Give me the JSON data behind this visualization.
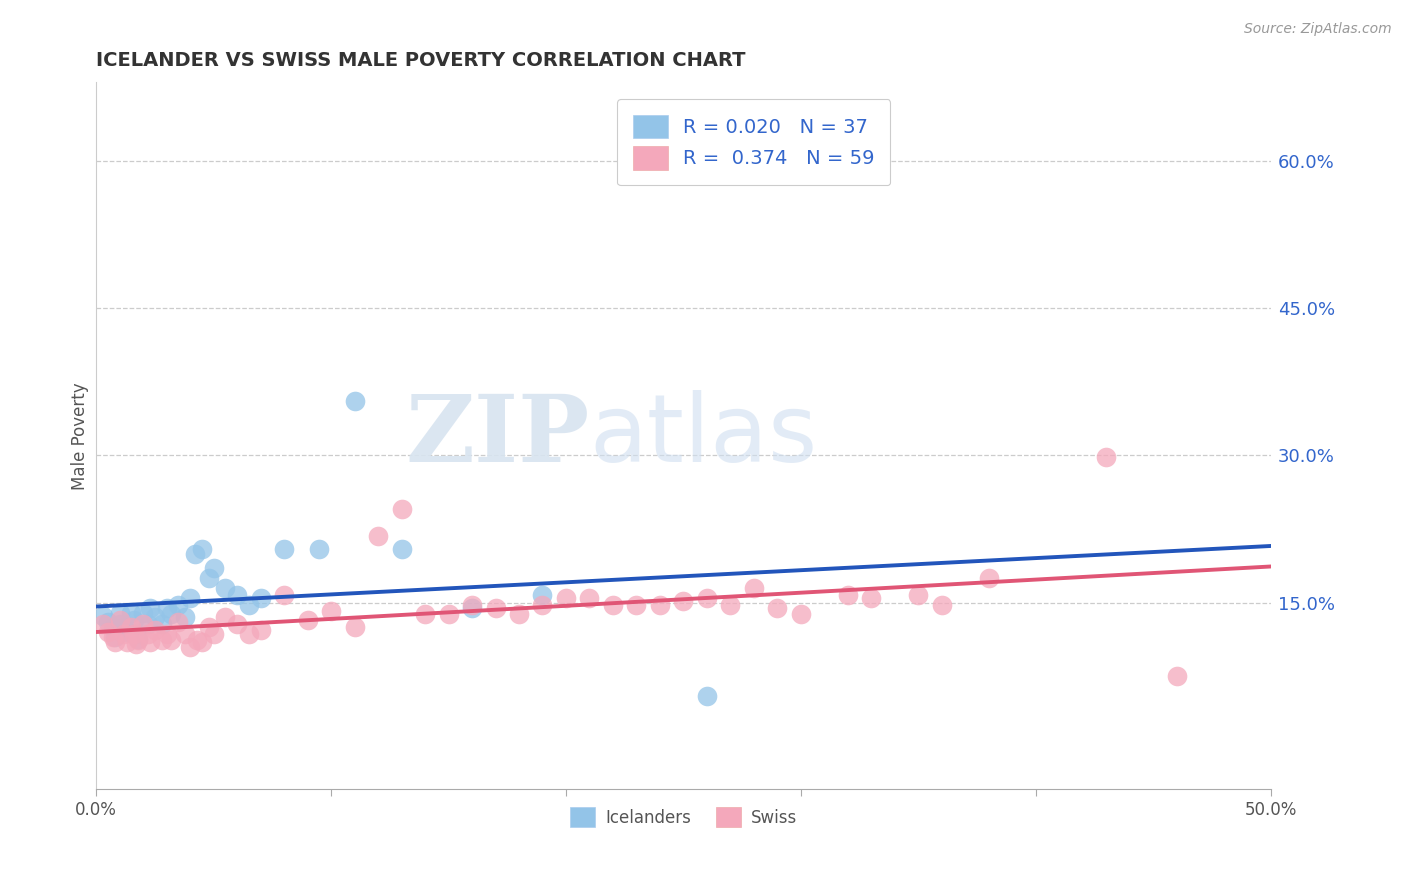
{
  "title": "ICELANDER VS SWISS MALE POVERTY CORRELATION CHART",
  "source_text": "Source: ZipAtlas.com",
  "ylabel": "Male Poverty",
  "xlim": [
    0.0,
    0.5
  ],
  "ylim": [
    -0.04,
    0.68
  ],
  "xticks": [
    0.0,
    0.1,
    0.2,
    0.3,
    0.4,
    0.5
  ],
  "yticks_right": [
    0.15,
    0.3,
    0.45,
    0.6
  ],
  "ytick_labels_right": [
    "15.0%",
    "30.0%",
    "45.0%",
    "60.0%"
  ],
  "xtick_labels": [
    "0.0%",
    "",
    "",
    "",
    "",
    "50.0%"
  ],
  "grid_color": "#cccccc",
  "background_color": "#ffffff",
  "watermark_zip": "ZIP",
  "watermark_atlas": "atlas",
  "icelander_color": "#93c4e8",
  "swiss_color": "#f4a8bb",
  "icelander_R": 0.02,
  "icelander_N": 37,
  "swiss_R": 0.374,
  "swiss_N": 59,
  "icelander_line_color": "#2255bb",
  "swiss_line_color": "#e05575",
  "legend_text_color": "#3366cc",
  "icelander_x": [
    0.003,
    0.005,
    0.007,
    0.008,
    0.01,
    0.01,
    0.012,
    0.013,
    0.015,
    0.016,
    0.017,
    0.018,
    0.02,
    0.022,
    0.023,
    0.025,
    0.028,
    0.03,
    0.032,
    0.035,
    0.038,
    0.04,
    0.042,
    0.045,
    0.048,
    0.05,
    0.055,
    0.06,
    0.065,
    0.07,
    0.08,
    0.095,
    0.11,
    0.13,
    0.16,
    0.19,
    0.26
  ],
  "icelander_y": [
    0.136,
    0.13,
    0.125,
    0.115,
    0.14,
    0.128,
    0.125,
    0.12,
    0.14,
    0.132,
    0.118,
    0.113,
    0.14,
    0.128,
    0.145,
    0.135,
    0.128,
    0.145,
    0.138,
    0.148,
    0.135,
    0.155,
    0.2,
    0.205,
    0.175,
    0.185,
    0.165,
    0.158,
    0.148,
    0.155,
    0.205,
    0.205,
    0.355,
    0.205,
    0.145,
    0.158,
    0.055
  ],
  "swiss_x": [
    0.003,
    0.005,
    0.007,
    0.008,
    0.01,
    0.012,
    0.013,
    0.015,
    0.016,
    0.017,
    0.018,
    0.02,
    0.022,
    0.023,
    0.025,
    0.028,
    0.03,
    0.032,
    0.035,
    0.038,
    0.04,
    0.043,
    0.045,
    0.048,
    0.05,
    0.055,
    0.06,
    0.065,
    0.07,
    0.08,
    0.09,
    0.1,
    0.11,
    0.12,
    0.13,
    0.14,
    0.15,
    0.16,
    0.17,
    0.18,
    0.19,
    0.2,
    0.21,
    0.22,
    0.23,
    0.24,
    0.25,
    0.26,
    0.27,
    0.28,
    0.29,
    0.3,
    0.32,
    0.33,
    0.35,
    0.36,
    0.38,
    0.43,
    0.46
  ],
  "swiss_y": [
    0.128,
    0.12,
    0.115,
    0.11,
    0.132,
    0.118,
    0.11,
    0.125,
    0.118,
    0.108,
    0.112,
    0.128,
    0.118,
    0.11,
    0.122,
    0.112,
    0.118,
    0.112,
    0.13,
    0.118,
    0.105,
    0.112,
    0.11,
    0.125,
    0.118,
    0.135,
    0.128,
    0.118,
    0.122,
    0.158,
    0.132,
    0.142,
    0.125,
    0.218,
    0.245,
    0.138,
    0.138,
    0.148,
    0.145,
    0.138,
    0.148,
    0.155,
    0.155,
    0.148,
    0.148,
    0.148,
    0.152,
    0.155,
    0.148,
    0.165,
    0.145,
    0.138,
    0.158,
    0.155,
    0.158,
    0.148,
    0.175,
    0.298,
    0.075
  ]
}
